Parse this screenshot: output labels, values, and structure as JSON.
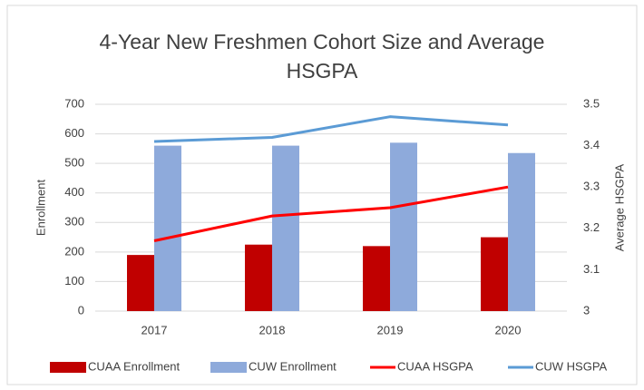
{
  "chart_data": {
    "type": "bar",
    "title": "4-Year New Freshmen Cohort Size and Average HSGPA",
    "ylabel": "Enrollment",
    "y2label": "Average HSGPA",
    "categories": [
      "2017",
      "2018",
      "2019",
      "2020"
    ],
    "series": [
      {
        "name": "CUAA Enrollment",
        "type": "bar",
        "color": "#c00000",
        "values": [
          190,
          225,
          220,
          250
        ]
      },
      {
        "name": "CUW Enrollment",
        "type": "bar",
        "color": "#8eaadb",
        "values": [
          560,
          560,
          570,
          535
        ]
      },
      {
        "name": "CUAA HSGPA",
        "type": "line",
        "axis": "y2",
        "color": "#ff0000",
        "values": [
          3.17,
          3.23,
          3.25,
          3.3
        ]
      },
      {
        "name": "CUW HSGPA",
        "type": "line",
        "axis": "y2",
        "color": "#5b9bd5",
        "values": [
          3.41,
          3.42,
          3.47,
          3.45
        ]
      }
    ],
    "ylim": [
      0,
      700
    ],
    "yticks": [
      0,
      100,
      200,
      300,
      400,
      500,
      600,
      700
    ],
    "y2lim": [
      3,
      3.5
    ],
    "y2ticks": [
      3,
      3.1,
      3.2,
      3.3,
      3.4,
      3.5
    ],
    "grid": true,
    "legend": "bottom"
  }
}
